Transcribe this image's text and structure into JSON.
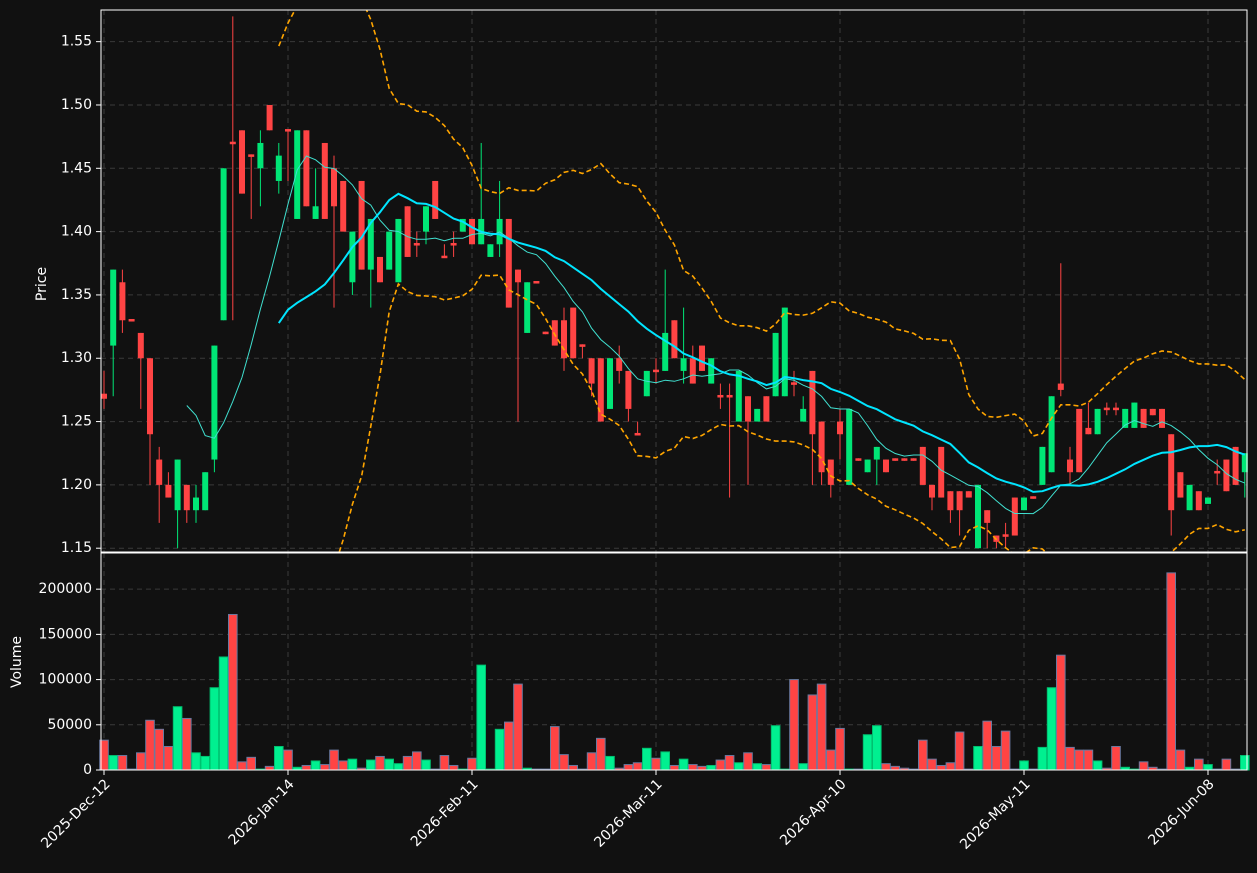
{
  "chart_data": {
    "type": "candlestick",
    "categories": [
      "2025-Dec-12",
      null,
      null,
      null,
      null,
      null,
      null,
      null,
      null,
      null,
      null,
      null,
      null,
      null,
      null,
      null,
      null,
      null,
      null,
      null,
      "2026-Jan-14",
      null,
      null,
      null,
      null,
      null,
      null,
      null,
      null,
      null,
      null,
      null,
      null,
      null,
      null,
      null,
      null,
      null,
      null,
      null,
      "2026-Feb-11",
      null,
      null,
      null,
      null,
      null,
      null,
      null,
      null,
      null,
      null,
      null,
      null,
      null,
      null,
      null,
      null,
      null,
      null,
      null,
      "2026-Mar-11",
      null,
      null,
      null,
      null,
      null,
      null,
      null,
      null,
      null,
      null,
      null,
      null,
      null,
      null,
      null,
      null,
      null,
      null,
      null,
      "2026-Apr-10",
      null,
      null,
      null,
      null,
      null,
      null,
      null,
      null,
      null,
      null,
      null,
      null,
      null,
      null,
      null,
      null,
      null,
      null,
      null,
      "2026-May-11",
      null,
      null,
      null,
      null,
      null,
      null,
      null,
      null,
      null,
      null,
      null,
      null,
      null,
      null,
      null,
      null,
      null,
      null,
      null,
      "2026-Jun-08",
      null,
      null,
      null,
      null
    ],
    "open": [
      1.272,
      1.31,
      1.36,
      1.331,
      1.32,
      1.3,
      1.22,
      1.2,
      1.18,
      1.2,
      1.18,
      1.18,
      1.22,
      1.33,
      1.471,
      1.48,
      1.461,
      1.45,
      1.5,
      1.44,
      1.481,
      1.41,
      1.48,
      1.41,
      1.47,
      1.45,
      1.44,
      1.36,
      1.44,
      1.37,
      1.38,
      1.37,
      1.36,
      1.42,
      1.391,
      1.4,
      1.44,
      1.381,
      1.391,
      1.4,
      1.41,
      1.39,
      1.38,
      1.39,
      1.41,
      1.37,
      1.32,
      1.361,
      1.321,
      1.33,
      1.33,
      1.34,
      1.311,
      1.3,
      1.3,
      1.26,
      1.3,
      1.29,
      1.241,
      1.27,
      1.291,
      1.29,
      1.33,
      1.29,
      1.3,
      1.31,
      1.28,
      1.271,
      1.271,
      1.25,
      1.27,
      1.25,
      1.27,
      1.27,
      1.27,
      1.281,
      1.25,
      1.29,
      1.25,
      1.22,
      1.25,
      1.2,
      1.221,
      1.21,
      1.22,
      1.22,
      1.221,
      1.221,
      1.221,
      1.23,
      1.2,
      1.23,
      1.195,
      1.195,
      1.195,
      1.15,
      1.18,
      1.16,
      1.161,
      1.19,
      1.18,
      1.191,
      1.2,
      1.21,
      1.28,
      1.22,
      1.26,
      1.245,
      1.24,
      1.261,
      1.261,
      1.245,
      1.245,
      1.26,
      1.26,
      1.26,
      1.24,
      1.21,
      1.18,
      1.195,
      1.185,
      1.211,
      1.22,
      1.23,
      1.21
    ],
    "high": [
      1.29,
      1.37,
      1.37,
      1.331,
      1.32,
      1.3,
      1.23,
      1.21,
      1.22,
      1.2,
      1.2,
      1.21,
      1.31,
      1.45,
      1.57,
      1.48,
      1.461,
      1.48,
      1.5,
      1.47,
      1.481,
      1.48,
      1.48,
      1.45,
      1.47,
      1.46,
      1.44,
      1.4,
      1.44,
      1.41,
      1.38,
      1.4,
      1.41,
      1.42,
      1.4,
      1.42,
      1.44,
      1.39,
      1.4,
      1.41,
      1.41,
      1.47,
      1.39,
      1.44,
      1.41,
      1.37,
      1.36,
      1.361,
      1.321,
      1.33,
      1.34,
      1.34,
      1.311,
      1.3,
      1.3,
      1.3,
      1.31,
      1.29,
      1.25,
      1.29,
      1.3,
      1.37,
      1.33,
      1.34,
      1.31,
      1.31,
      1.3,
      1.28,
      1.28,
      1.29,
      1.27,
      1.26,
      1.27,
      1.32,
      1.34,
      1.29,
      1.27,
      1.29,
      1.25,
      1.22,
      1.26,
      1.26,
      1.221,
      1.22,
      1.23,
      1.22,
      1.221,
      1.221,
      1.221,
      1.23,
      1.2,
      1.23,
      1.195,
      1.195,
      1.195,
      1.2,
      1.18,
      1.16,
      1.17,
      1.19,
      1.19,
      1.191,
      1.23,
      1.27,
      1.375,
      1.23,
      1.26,
      1.265,
      1.26,
      1.265,
      1.265,
      1.26,
      1.265,
      1.26,
      1.26,
      1.26,
      1.24,
      1.21,
      1.2,
      1.195,
      1.19,
      1.22,
      1.22,
      1.23,
      1.225
    ],
    "low": [
      1.26,
      1.27,
      1.32,
      1.329,
      1.26,
      1.2,
      1.17,
      1.19,
      1.15,
      1.17,
      1.17,
      1.18,
      1.21,
      1.33,
      1.33,
      1.43,
      1.41,
      1.42,
      1.48,
      1.43,
      1.44,
      1.41,
      1.42,
      1.41,
      1.41,
      1.34,
      1.4,
      1.35,
      1.37,
      1.34,
      1.36,
      1.37,
      1.36,
      1.38,
      1.38,
      1.39,
      1.41,
      1.38,
      1.38,
      1.4,
      1.39,
      1.39,
      1.38,
      1.38,
      1.34,
      1.25,
      1.32,
      1.359,
      1.319,
      1.31,
      1.29,
      1.3,
      1.3,
      1.27,
      1.25,
      1.26,
      1.28,
      1.25,
      1.24,
      1.27,
      1.28,
      1.29,
      1.3,
      1.28,
      1.28,
      1.29,
      1.28,
      1.26,
      1.19,
      1.25,
      1.2,
      1.25,
      1.25,
      1.27,
      1.27,
      1.27,
      1.25,
      1.2,
      1.2,
      1.19,
      1.22,
      1.2,
      1.219,
      1.21,
      1.2,
      1.21,
      1.219,
      1.219,
      1.219,
      1.2,
      1.18,
      1.19,
      1.17,
      1.16,
      1.19,
      1.15,
      1.15,
      1.15,
      1.15,
      1.16,
      1.18,
      1.189,
      1.2,
      1.21,
      1.27,
      1.2,
      1.21,
      1.24,
      1.24,
      1.255,
      1.255,
      1.245,
      1.245,
      1.245,
      1.255,
      1.245,
      1.16,
      1.19,
      1.18,
      1.18,
      1.185,
      1.2,
      1.195,
      1.2,
      1.19
    ],
    "close": [
      1.268,
      1.37,
      1.33,
      1.329,
      1.3,
      1.24,
      1.2,
      1.19,
      1.22,
      1.18,
      1.19,
      1.21,
      1.31,
      1.45,
      1.469,
      1.43,
      1.459,
      1.47,
      1.48,
      1.46,
      1.479,
      1.48,
      1.42,
      1.42,
      1.41,
      1.42,
      1.4,
      1.4,
      1.37,
      1.41,
      1.36,
      1.4,
      1.41,
      1.38,
      1.389,
      1.42,
      1.41,
      1.379,
      1.389,
      1.41,
      1.39,
      1.41,
      1.39,
      1.41,
      1.34,
      1.36,
      1.36,
      1.359,
      1.319,
      1.31,
      1.3,
      1.3,
      1.309,
      1.28,
      1.25,
      1.3,
      1.29,
      1.26,
      1.239,
      1.29,
      1.289,
      1.32,
      1.3,
      1.3,
      1.28,
      1.29,
      1.3,
      1.269,
      1.269,
      1.29,
      1.25,
      1.26,
      1.25,
      1.32,
      1.34,
      1.279,
      1.26,
      1.24,
      1.21,
      1.2,
      1.24,
      1.26,
      1.219,
      1.22,
      1.23,
      1.21,
      1.219,
      1.219,
      1.219,
      1.2,
      1.19,
      1.19,
      1.18,
      1.18,
      1.19,
      1.2,
      1.17,
      1.155,
      1.159,
      1.16,
      1.19,
      1.189,
      1.23,
      1.27,
      1.275,
      1.21,
      1.21,
      1.24,
      1.26,
      1.259,
      1.259,
      1.26,
      1.265,
      1.245,
      1.255,
      1.245,
      1.18,
      1.19,
      1.2,
      1.18,
      1.19,
      1.209,
      1.195,
      1.2,
      1.225
    ],
    "volume": [
      33000,
      16000,
      16000,
      1000,
      19000,
      55000,
      45000,
      26000,
      70000,
      57000,
      19000,
      15000,
      91000,
      125000,
      172000,
      9000,
      14000,
      1000,
      4000,
      26000,
      22000,
      3000,
      5000,
      10000,
      6000,
      22000,
      10000,
      12000,
      2000,
      11000,
      15000,
      12000,
      7000,
      15000,
      20000,
      11000,
      1000,
      16000,
      5000,
      1000,
      13000,
      116000,
      1000,
      45000,
      53000,
      95000,
      2000,
      1000,
      1000,
      48000,
      17000,
      5000,
      1000,
      19000,
      35000,
      15000,
      2000,
      6000,
      8000,
      24000,
      13000,
      20000,
      5000,
      12000,
      6000,
      4000,
      5000,
      11000,
      16000,
      8000,
      19000,
      7000,
      6000,
      49000,
      1000,
      100000,
      7000,
      83000,
      95000,
      22000,
      46000,
      1000,
      1000,
      39000,
      49000,
      7000,
      4000,
      2000,
      1000,
      33000,
      12000,
      5000,
      8000,
      42000,
      1000,
      26000,
      54000,
      26000,
      43000,
      1000,
      10000,
      1000,
      25000,
      91000,
      127000,
      25000,
      22000,
      22000,
      10000,
      2000,
      26000,
      3000,
      1000,
      9000,
      3000,
      1000,
      218000,
      22000,
      3000,
      12000,
      6000,
      1000,
      12000,
      1000,
      16000
    ],
    "up_color": "#00e676",
    "down_color": "#ff4444",
    "ylabel": "Price",
    "ylim": [
      1.147,
      1.575
    ],
    "yticks": [
      1.15,
      {
        "value": 1.2,
        "label": "1.20"
      },
      1.25,
      {
        "value": 1.3,
        "label": "1.30"
      },
      1.35,
      {
        "value": 1.4,
        "label": "1.40"
      },
      1.45,
      {
        "value": 1.5,
        "label": "1.50"
      },
      1.55
    ],
    "volume_ylabel": "Volume",
    "volume_ylim": [
      0,
      240000
    ],
    "volume_yticks": [
      0,
      50000,
      100000,
      150000,
      200000
    ],
    "grid": true,
    "moving_averages": [
      {
        "window": 10,
        "color": "#40e0d0",
        "width": 1
      },
      {
        "window": 20,
        "color": "#00e5ff",
        "width": 2
      }
    ],
    "bollinger": {
      "window": 20,
      "k": 2,
      "color": "#ffa500"
    }
  }
}
